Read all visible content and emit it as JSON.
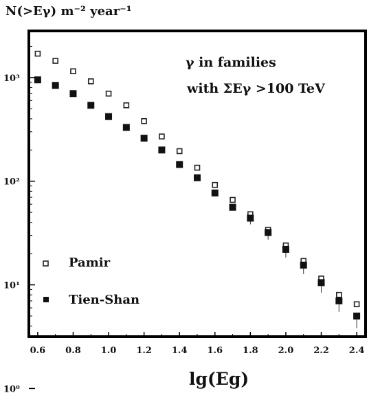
{
  "chart_data": {
    "type": "scatter",
    "ylabel": "N(>Eγ) m⁻² year⁻¹",
    "xlabel": "lg(Eg)",
    "annotation": [
      "γ in families",
      "with ΣEγ >100 TeV"
    ],
    "xlim": [
      0.55,
      2.45
    ],
    "ylim": [
      0.5,
      3.45
    ],
    "yscale": "log",
    "x_ticks": [
      "0.6",
      "0.8",
      "1.0",
      "1.2",
      "1.4",
      "1.6",
      "1.8",
      "2.0",
      "2.2",
      "2.4"
    ],
    "y_ticks": [
      "10⁰",
      "10¹",
      "10²",
      "10³"
    ],
    "grid": false,
    "legend_position": "bottom-left",
    "series": [
      {
        "name": "Pamir",
        "marker": "open-square",
        "x": [
          0.6,
          0.7,
          0.8,
          0.9,
          1.0,
          1.1,
          1.2,
          1.3,
          1.4,
          1.5,
          1.6,
          1.7,
          1.8,
          1.9,
          2.0,
          2.1,
          2.2,
          2.3,
          2.4
        ],
        "y": [
          1700,
          1450,
          1150,
          920,
          700,
          540,
          380,
          270,
          195,
          135,
          92,
          66,
          48,
          34,
          24,
          17,
          11.5,
          8,
          6.5
        ]
      },
      {
        "name": "Tien-Shan",
        "marker": "filled-square",
        "x": [
          0.6,
          0.7,
          0.8,
          0.9,
          1.0,
          1.1,
          1.2,
          1.3,
          1.4,
          1.5,
          1.6,
          1.7,
          1.8,
          1.9,
          2.0,
          2.1,
          2.2,
          2.3,
          2.4
        ],
        "y": [
          950,
          840,
          700,
          540,
          420,
          330,
          260,
          200,
          145,
          108,
          77,
          56,
          44,
          32,
          22,
          15.5,
          10.5,
          7,
          5
        ]
      }
    ]
  }
}
